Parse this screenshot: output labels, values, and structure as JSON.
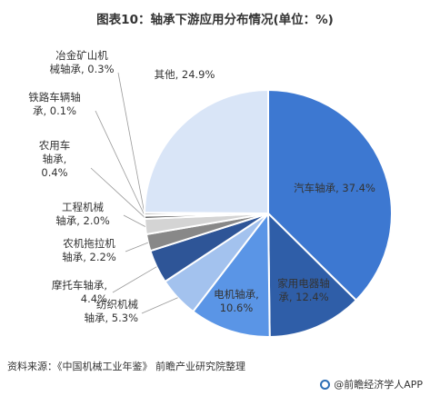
{
  "title": "图表10：轴承下游应用分布情况(单位：%)",
  "chart_data": {
    "type": "pie",
    "title": "图表10：轴承下游应用分布情况(单位：%)",
    "slices": [
      {
        "name": "汽车轴承",
        "value": 37.4,
        "color": "#3d78d1",
        "label_lines": [
          "汽车轴承, 37.4%"
        ]
      },
      {
        "name": "家用电器轴承",
        "value": 12.4,
        "color": "#2f5ea8",
        "label_lines": [
          "家用电器轴",
          "承, 12.4%"
        ]
      },
      {
        "name": "电机轴承",
        "value": 10.6,
        "color": "#5a95e6",
        "label_lines": [
          "电机轴承,",
          "10.6%"
        ]
      },
      {
        "name": "纺织机械轴承",
        "value": 5.3,
        "color": "#a3c2ee",
        "label_lines": [
          "纺织机械",
          "轴承, 5.3%"
        ]
      },
      {
        "name": "摩托车轴承",
        "value": 4.4,
        "color": "#2e5597",
        "label_lines": [
          "摩托车轴承,",
          "4.4%"
        ]
      },
      {
        "name": "农机拖拉机轴承",
        "value": 2.2,
        "color": "#888888",
        "label_lines": [
          "农机拖拉机",
          "轴承, 2.2%"
        ]
      },
      {
        "name": "工程机械轴承",
        "value": 2.0,
        "color": "#d4d4d4",
        "label_lines": [
          "工程机械",
          "轴承, 2.0%"
        ]
      },
      {
        "name": "农用车轴承",
        "value": 0.4,
        "color": "#555555",
        "label_lines": [
          "农用车",
          "轴承,",
          "0.4%"
        ]
      },
      {
        "name": "铁路车辆轴承",
        "value": 0.1,
        "color": "#999999",
        "label_lines": [
          "铁路车辆轴",
          "承, 0.1%"
        ]
      },
      {
        "name": "冶金矿山机械轴承",
        "value": 0.3,
        "color": "#666666",
        "label_lines": [
          "冶金矿山机",
          "械轴承, 0.3%"
        ]
      },
      {
        "name": "其他",
        "value": 24.9,
        "color": "#d9e5f7",
        "label_lines": [
          "其他, 24.9%"
        ]
      }
    ]
  },
  "source": "资料来源：《中国机械工业年鉴》 前瞻产业研究院整理",
  "footer_brand": "@前瞻经济学人APP"
}
